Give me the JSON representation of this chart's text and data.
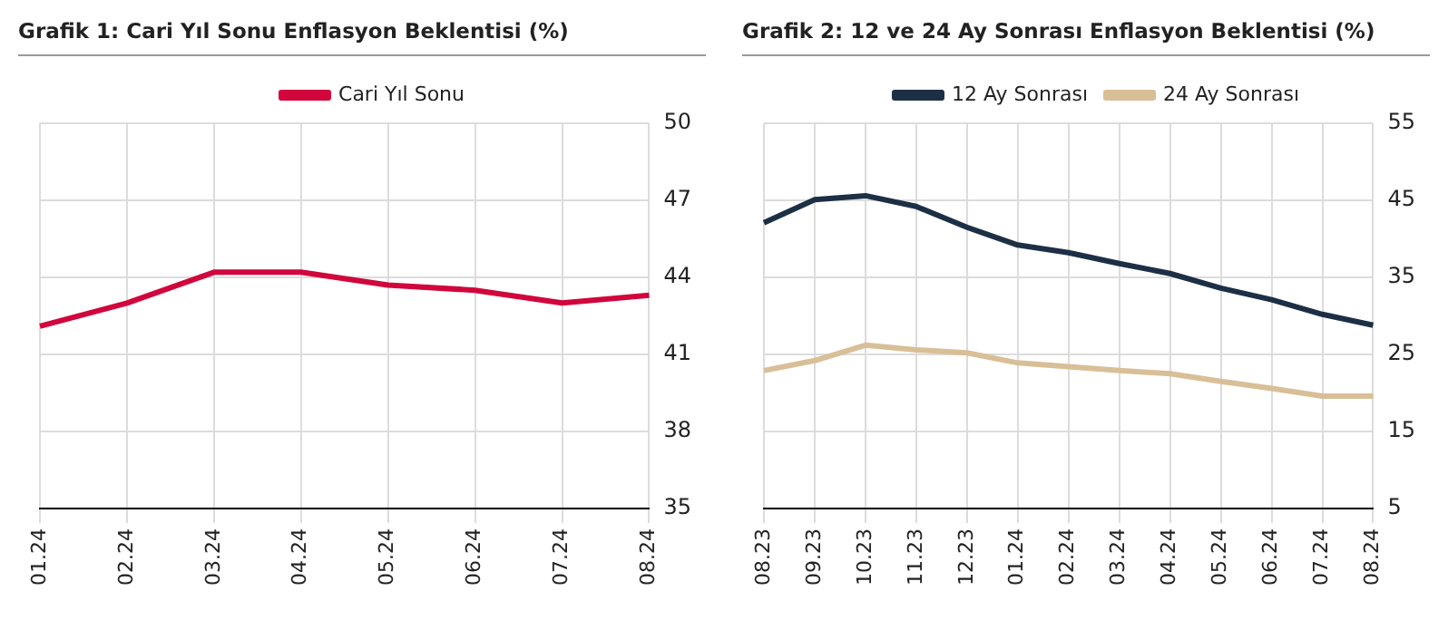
{
  "chart_data": [
    {
      "type": "line",
      "title": "Grafik 1: Cari Yıl Sonu Enflasyon Beklentisi (%)",
      "categories": [
        "01.24",
        "02.24",
        "03.24",
        "04.24",
        "05.24",
        "06.24",
        "07.24",
        "08.24"
      ],
      "series": [
        {
          "name": "Cari Yıl Sonu",
          "color": "#d0063c",
          "values": [
            42.1,
            43.0,
            44.2,
            44.2,
            43.7,
            43.5,
            43.0,
            43.3
          ]
        }
      ],
      "ylim": [
        35,
        50
      ],
      "yticks": [
        35,
        38,
        41,
        44,
        47,
        50
      ],
      "grid": true,
      "legend": "top",
      "marker": "none"
    },
    {
      "type": "line",
      "title": "Grafik 2: 12 ve 24 Ay Sonrası Enflasyon Beklentisi (%)",
      "categories": [
        "08.23",
        "09.23",
        "10.23",
        "11.23",
        "12.23",
        "01.24",
        "02.24",
        "03.24",
        "04.24",
        "05.24",
        "06.24",
        "07.24",
        "08.24"
      ],
      "series": [
        {
          "name": "12 Ay Sonrası",
          "color": "#1c2f45",
          "values": [
            42.1,
            45.1,
            45.6,
            44.2,
            41.5,
            39.2,
            38.2,
            36.8,
            35.5,
            33.6,
            32.1,
            30.2,
            28.8
          ]
        },
        {
          "name": "24 Ay Sonrası",
          "color": "#d9bf97",
          "values": [
            22.9,
            24.2,
            26.2,
            25.6,
            25.2,
            23.9,
            23.4,
            22.9,
            22.5,
            21.5,
            20.6,
            19.6,
            19.6
          ]
        }
      ],
      "ylim": [
        5,
        55
      ],
      "yticks": [
        5,
        15,
        25,
        35,
        45,
        55
      ],
      "grid": true,
      "legend": "top",
      "marker": "none"
    }
  ]
}
